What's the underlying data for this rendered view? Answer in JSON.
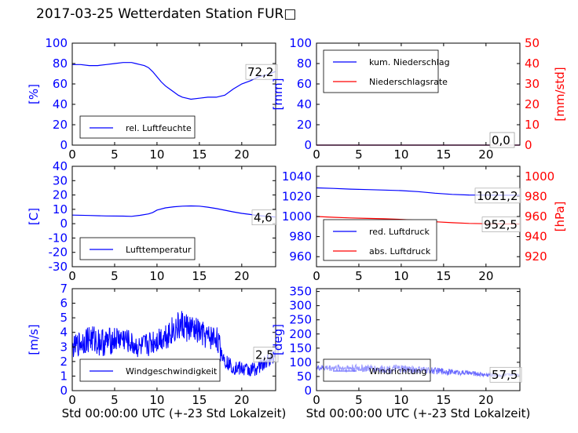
{
  "title": "2017-03-25 Wetterdaten Station FUR□",
  "colors": {
    "left_axis": "#0000ff",
    "right_axis": "#ff0000",
    "series_blue": "#0000ff",
    "series_red": "#ff0000",
    "series_wind_dir": "#6a6aff"
  },
  "chart_data": [
    {
      "id": "humidity",
      "type": "line",
      "xlim": [
        0,
        24
      ],
      "xticks": [
        0,
        5,
        10,
        15,
        20
      ],
      "ylim": [
        0,
        100
      ],
      "yticks": [
        0,
        20,
        40,
        60,
        80,
        100
      ],
      "ylabel": "[%]",
      "series": [
        {
          "name": "rel. Luftfeuchte",
          "color": "#0000ff",
          "axis": "left",
          "x": [
            0,
            1,
            2,
            3,
            4,
            5,
            6,
            7,
            7.5,
            8,
            8.5,
            9,
            9.5,
            10,
            10.5,
            11,
            11.5,
            12,
            12.5,
            13,
            13.5,
            14,
            15,
            16,
            17,
            18,
            19,
            20,
            21,
            22,
            23,
            24
          ],
          "y": [
            79,
            79,
            78,
            78,
            79,
            80,
            81,
            81,
            80,
            79,
            78,
            76,
            72,
            67,
            62,
            58,
            55,
            52,
            49,
            47,
            46,
            45,
            46,
            47,
            47,
            49,
            55,
            60,
            63,
            67,
            69,
            72.2
          ]
        }
      ],
      "annotation": "72,2"
    },
    {
      "id": "precip",
      "type": "line",
      "xlim": [
        0,
        24
      ],
      "xticks": [
        0,
        5,
        10,
        15,
        20
      ],
      "ylim": [
        0,
        100
      ],
      "yticks": [
        0,
        20,
        40,
        60,
        80,
        100
      ],
      "ylabel": "[mm]",
      "y2lim": [
        0,
        50
      ],
      "y2ticks": [
        0,
        10,
        20,
        30,
        40,
        50
      ],
      "y2label": "[mm/std]",
      "series": [
        {
          "name": "kum. Niederschlag",
          "color": "#0000ff",
          "axis": "left",
          "x": [
            0,
            24
          ],
          "y": [
            0,
            0
          ]
        },
        {
          "name": "Niederschlagsrate",
          "color": "#ff0000",
          "axis": "right",
          "x": [
            0,
            24
          ],
          "y": [
            0,
            0
          ]
        }
      ],
      "annotation": "0,0",
      "annotation2": "0,0"
    },
    {
      "id": "temperature",
      "type": "line",
      "xlim": [
        0,
        24
      ],
      "xticks": [
        0,
        5,
        10,
        15,
        20
      ],
      "ylim": [
        -30,
        40
      ],
      "yticks": [
        -30,
        -20,
        -10,
        0,
        10,
        20,
        30,
        40
      ],
      "ylabel": "[C]",
      "series": [
        {
          "name": "Lufttemperatur",
          "color": "#0000ff",
          "axis": "left",
          "x": [
            0,
            2,
            4,
            6,
            7,
            8,
            9,
            9.5,
            10,
            11,
            12,
            13,
            14,
            15,
            16,
            17,
            18,
            19,
            20,
            21,
            22,
            23,
            24
          ],
          "y": [
            6,
            5.7,
            5.4,
            5.3,
            5.1,
            5.8,
            6.8,
            7.8,
            9.5,
            11,
            11.8,
            12.2,
            12.4,
            12.2,
            11.5,
            10.5,
            9.4,
            8.2,
            7.2,
            6.4,
            5.6,
            5.1,
            4.6
          ]
        }
      ],
      "annotation": "4,6"
    },
    {
      "id": "pressure",
      "type": "line",
      "xlim": [
        0,
        24
      ],
      "xticks": [
        0,
        5,
        10,
        15,
        20
      ],
      "ylim": [
        950,
        1050
      ],
      "yticks": [
        960,
        980,
        1000,
        1020,
        1040
      ],
      "y2lim": [
        910,
        1010
      ],
      "y2ticks": [
        920,
        940,
        960,
        980,
        1000
      ],
      "y2label": "[hPa]",
      "series": [
        {
          "name": "red. Luftdruck",
          "color": "#0000ff",
          "axis": "left",
          "x": [
            0,
            2,
            4,
            6,
            8,
            10,
            12,
            14,
            16,
            18,
            20,
            22,
            24
          ],
          "y": [
            1028.5,
            1028,
            1027.3,
            1026.8,
            1026.3,
            1025.8,
            1024.8,
            1023.2,
            1022,
            1021.4,
            1021.3,
            1021.2,
            1021.2
          ]
        },
        {
          "name": "abs. Luftdruck",
          "color": "#ff0000",
          "axis": "right",
          "x": [
            0,
            2,
            4,
            6,
            8,
            10,
            12,
            14,
            16,
            18,
            20,
            22,
            24
          ],
          "y": [
            960,
            959.2,
            958.6,
            958.1,
            957.7,
            957.1,
            956.2,
            954.8,
            953.8,
            953.1,
            952.8,
            952.6,
            952.5
          ]
        }
      ],
      "annotation": "1021,2",
      "annotation2": "952,5"
    },
    {
      "id": "wind_speed",
      "type": "line",
      "xlim": [
        0,
        24
      ],
      "xticks": [
        0,
        5,
        10,
        15,
        20
      ],
      "ylim": [
        0,
        7
      ],
      "yticks": [
        0,
        1,
        2,
        3,
        4,
        5,
        6,
        7
      ],
      "ylabel": "[m/s]",
      "xlabel": "Std 00:00:00 UTC (+-23 Std Lokalzeit)",
      "series": [
        {
          "name": "Windgeschwindigkeit",
          "color": "#0000ff",
          "axis": "left",
          "x": [
            0,
            1,
            2,
            3,
            4,
            5,
            6,
            7,
            8,
            9,
            10,
            11,
            12,
            13,
            14,
            15,
            16,
            17,
            17.5,
            18,
            19,
            20,
            21,
            22,
            23,
            24
          ],
          "y": [
            2.9,
            3.3,
            3.6,
            3.4,
            3.3,
            3.5,
            3.6,
            3.2,
            2.9,
            3.2,
            3.5,
            3.8,
            4.2,
            4.5,
            4.2,
            4,
            3.6,
            3.7,
            2.8,
            2.1,
            1.6,
            1.5,
            1.4,
            1.6,
            2,
            2.5
          ],
          "noise": [
            0.7,
            0.9,
            1,
            1,
            1,
            0.9,
            0.9,
            0.8,
            0.8,
            0.9,
            0.9,
            1,
            1,
            1.1,
            1,
            0.9,
            0.9,
            0.9,
            0.8,
            0.5,
            0.5,
            0.5,
            0.5,
            0.5,
            0.5,
            0.5
          ]
        }
      ],
      "annotation": "2,5"
    },
    {
      "id": "wind_dir",
      "type": "line",
      "xlim": [
        0,
        24
      ],
      "xticks": [
        0,
        5,
        10,
        15,
        20
      ],
      "ylim": [
        0,
        360
      ],
      "yticks": [
        0,
        50,
        100,
        150,
        200,
        250,
        300,
        350
      ],
      "ylabel": "[deg]",
      "xlabel": "Std 00:00:00 UTC (+-23 Std Lokalzeit)",
      "series": [
        {
          "name": "Windrichtung",
          "color": "#6a6aff",
          "axis": "left",
          "x": [
            0,
            2,
            4,
            6,
            8,
            10,
            12,
            14,
            16,
            18,
            20,
            22,
            24
          ],
          "y": [
            80,
            80,
            80,
            78,
            76,
            76,
            73,
            70,
            66,
            62,
            56,
            54,
            57.5
          ],
          "noise": [
            10,
            12,
            14,
            14,
            14,
            16,
            14,
            12,
            10,
            8,
            8,
            6,
            6
          ]
        }
      ],
      "annotation": "57,5"
    }
  ]
}
